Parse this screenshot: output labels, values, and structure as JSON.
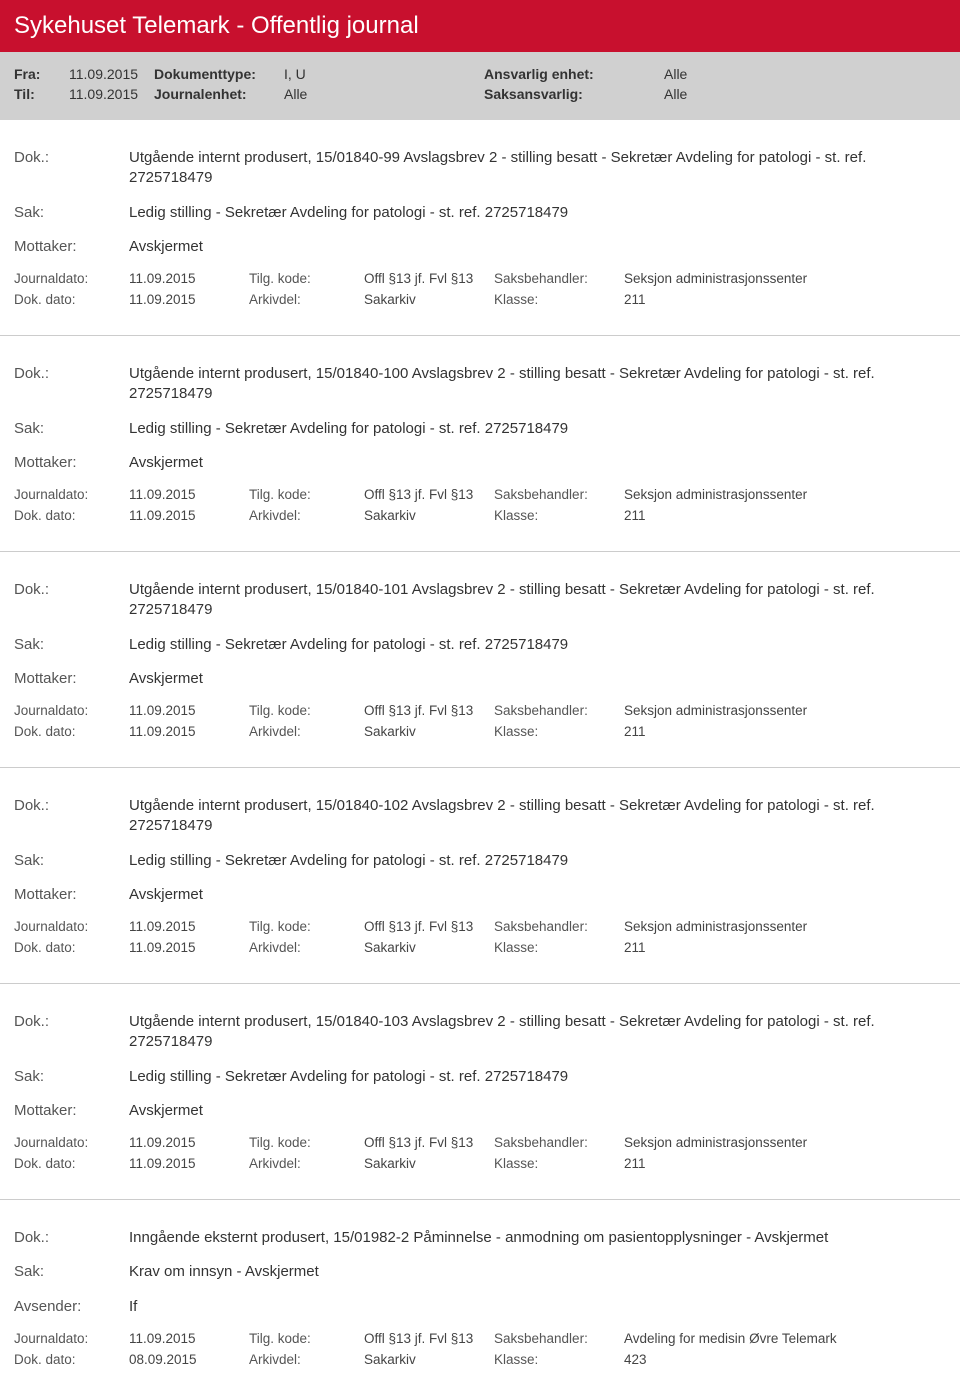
{
  "header": {
    "title": "Sykehuset Telemark - Offentlig journal",
    "fra_label": "Fra:",
    "fra_value": "11.09.2015",
    "til_label": "Til:",
    "til_value": "11.09.2015",
    "doktype_label": "Dokumenttype:",
    "doktype_value": "I, U",
    "journalenhet_label": "Journalenhet:",
    "journalenhet_value": "Alle",
    "ansvarlig_label": "Ansvarlig enhet:",
    "ansvarlig_value": "Alle",
    "saksansvarlig_label": "Saksansvarlig:",
    "saksansvarlig_value": "Alle"
  },
  "labels": {
    "dok": "Dok.:",
    "sak": "Sak:",
    "mottaker": "Mottaker:",
    "avsender": "Avsender:",
    "journaldato": "Journaldato:",
    "dokdato": "Dok. dato:",
    "tilgkode": "Tilg. kode:",
    "arkivdel": "Arkivdel:",
    "saksbehandler": "Saksbehandler:",
    "klasse": "Klasse:"
  },
  "entries": [
    {
      "dok": "Utgående internt produsert, 15/01840-99 Avslagsbrev 2 - stilling besatt - Sekretær Avdeling for patologi - st. ref. 2725718479",
      "sak": "Ledig stilling - Sekretær Avdeling for patologi - st. ref. 2725718479",
      "party_label": "Mottaker:",
      "party_value": "Avskjermet",
      "journaldato": "11.09.2015",
      "tilgkode": "Offl §13 jf. Fvl §13",
      "saksbehandler": "Seksjon administrasjonssenter",
      "dokdato": "11.09.2015",
      "arkivdel": "Sakarkiv",
      "klasse": "211"
    },
    {
      "dok": "Utgående internt produsert, 15/01840-100 Avslagsbrev 2 - stilling besatt - Sekretær Avdeling for patologi - st. ref. 2725718479",
      "sak": "Ledig stilling - Sekretær Avdeling for patologi - st. ref. 2725718479",
      "party_label": "Mottaker:",
      "party_value": "Avskjermet",
      "journaldato": "11.09.2015",
      "tilgkode": "Offl §13 jf. Fvl §13",
      "saksbehandler": "Seksjon administrasjonssenter",
      "dokdato": "11.09.2015",
      "arkivdel": "Sakarkiv",
      "klasse": "211"
    },
    {
      "dok": "Utgående internt produsert, 15/01840-101 Avslagsbrev 2 - stilling besatt - Sekretær Avdeling for patologi - st. ref. 2725718479",
      "sak": "Ledig stilling - Sekretær Avdeling for patologi - st. ref. 2725718479",
      "party_label": "Mottaker:",
      "party_value": "Avskjermet",
      "journaldato": "11.09.2015",
      "tilgkode": "Offl §13 jf. Fvl §13",
      "saksbehandler": "Seksjon administrasjonssenter",
      "dokdato": "11.09.2015",
      "arkivdel": "Sakarkiv",
      "klasse": "211"
    },
    {
      "dok": "Utgående internt produsert, 15/01840-102 Avslagsbrev 2 - stilling besatt - Sekretær Avdeling for patologi - st. ref. 2725718479",
      "sak": "Ledig stilling - Sekretær Avdeling for patologi - st. ref. 2725718479",
      "party_label": "Mottaker:",
      "party_value": "Avskjermet",
      "journaldato": "11.09.2015",
      "tilgkode": "Offl §13 jf. Fvl §13",
      "saksbehandler": "Seksjon administrasjonssenter",
      "dokdato": "11.09.2015",
      "arkivdel": "Sakarkiv",
      "klasse": "211"
    },
    {
      "dok": "Utgående internt produsert, 15/01840-103 Avslagsbrev 2 - stilling besatt - Sekretær Avdeling for patologi - st. ref. 2725718479",
      "sak": "Ledig stilling - Sekretær Avdeling for patologi - st. ref. 2725718479",
      "party_label": "Mottaker:",
      "party_value": "Avskjermet",
      "journaldato": "11.09.2015",
      "tilgkode": "Offl §13 jf. Fvl §13",
      "saksbehandler": "Seksjon administrasjonssenter",
      "dokdato": "11.09.2015",
      "arkivdel": "Sakarkiv",
      "klasse": "211"
    },
    {
      "dok": "Inngående eksternt produsert, 15/01982-2 Påminnelse - anmodning om pasientopplysninger - Avskjermet",
      "sak": "Krav om innsyn - Avskjermet",
      "party_label": "Avsender:",
      "party_value": "If",
      "journaldato": "11.09.2015",
      "tilgkode": "Offl §13 jf. Fvl §13",
      "saksbehandler": "Avdeling for medisin Øvre Telemark",
      "dokdato": "08.09.2015",
      "arkivdel": "Sakarkiv",
      "klasse": "423"
    }
  ]
}
